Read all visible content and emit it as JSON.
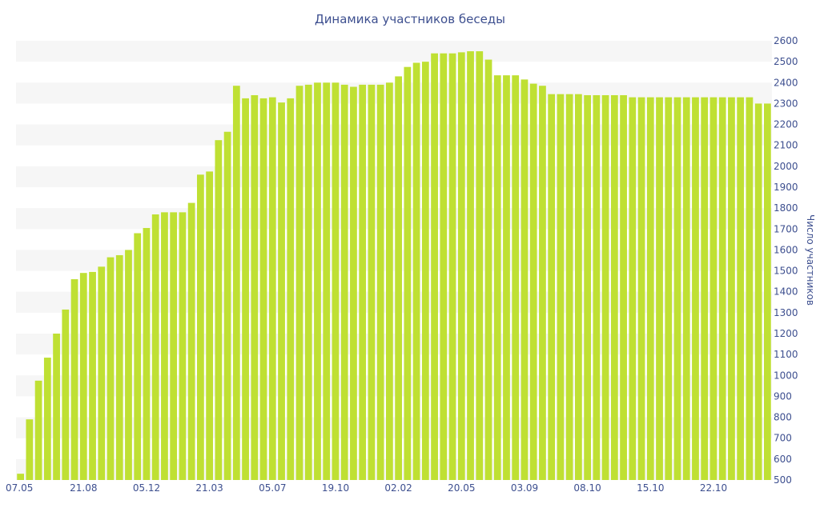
{
  "chart_data": {
    "type": "bar",
    "title": "Динамика участников беседы",
    "xlabel": "",
    "ylabel": "Число участников",
    "ylim": [
      500,
      2600
    ],
    "y_tick_step": 100,
    "grid": "alternating horizontal bands",
    "legend": "none",
    "y_axis_side": "right",
    "colors": {
      "bar": "#bfe033",
      "band": "#f6f6f6",
      "text": "#3d4f8f"
    },
    "x_tick_labels": [
      {
        "label": "07.05",
        "index": 0
      },
      {
        "label": "21.08",
        "index": 7
      },
      {
        "label": "05.12",
        "index": 14
      },
      {
        "label": "21.03",
        "index": 21
      },
      {
        "label": "05.07",
        "index": 28
      },
      {
        "label": "19.10",
        "index": 35
      },
      {
        "label": "02.02",
        "index": 42
      },
      {
        "label": "20.05",
        "index": 49
      },
      {
        "label": "03.09",
        "index": 56
      },
      {
        "label": "08.10",
        "index": 63
      },
      {
        "label": "15.10",
        "index": 70
      },
      {
        "label": "22.10",
        "index": 77
      }
    ],
    "values": [
      530,
      790,
      975,
      1085,
      1200,
      1315,
      1460,
      1490,
      1495,
      1520,
      1565,
      1575,
      1600,
      1680,
      1705,
      1770,
      1780,
      1780,
      1780,
      1825,
      1960,
      1975,
      2125,
      2165,
      2385,
      2325,
      2340,
      2325,
      2330,
      2305,
      2325,
      2385,
      2390,
      2400,
      2400,
      2400,
      2390,
      2380,
      2390,
      2390,
      2390,
      2400,
      2430,
      2475,
      2495,
      2500,
      2540,
      2540,
      2540,
      2545,
      2550,
      2550,
      2510,
      2435,
      2435,
      2435,
      2415,
      2395,
      2385,
      2345,
      2345,
      2345,
      2345,
      2340,
      2340,
      2340,
      2340,
      2340,
      2330,
      2330,
      2330,
      2330,
      2330,
      2330,
      2330,
      2330,
      2330,
      2330,
      2330,
      2330,
      2330,
      2330,
      2300,
      2300
    ]
  }
}
